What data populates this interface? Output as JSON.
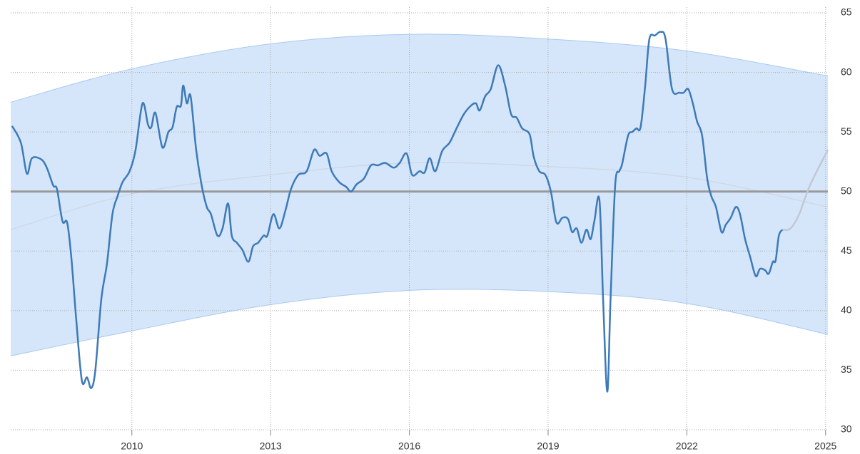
{
  "chart_data": {
    "type": "line",
    "xlim": [
      2007.38,
      2025.05
    ],
    "ylim": [
      30,
      65
    ],
    "xticks": [
      2010,
      2013,
      2016,
      2019,
      2022,
      2025
    ],
    "yticks": [
      30,
      35,
      40,
      45,
      50,
      55,
      60,
      65
    ],
    "grid": true,
    "reference_line": 50,
    "reference_color": "#999999",
    "band": {
      "color": "#d6e6fa",
      "edge_color": "#aac8f0",
      "trend_color": "#cfd8e6",
      "x": [
        2007.38,
        2010,
        2013,
        2016,
        2019,
        2022,
        2025.05
      ],
      "upper": [
        57.5,
        60.3,
        62.4,
        63.2,
        62.8,
        61.8,
        59.7
      ],
      "lower": [
        36.2,
        38.3,
        40.5,
        41.7,
        41.6,
        40.6,
        38.0
      ],
      "trend": [
        46.8,
        49.8,
        51.4,
        52.4,
        52.1,
        51.2,
        48.7
      ]
    },
    "series": [
      {
        "color": "#3d7ab8",
        "x": [
          2007.41,
          2007.6,
          2007.73,
          2007.84,
          2008.04,
          2008.16,
          2008.3,
          2008.38,
          2008.5,
          2008.6,
          2008.69,
          2008.8,
          2008.92,
          2009.03,
          2009.12,
          2009.21,
          2009.34,
          2009.46,
          2009.58,
          2009.69,
          2009.8,
          2009.95,
          2010.08,
          2010.23,
          2010.35,
          2010.42,
          2010.51,
          2010.66,
          2010.79,
          2010.88,
          2010.97,
          2011.06,
          2011.11,
          2011.19,
          2011.27,
          2011.39,
          2011.51,
          2011.62,
          2011.71,
          2011.85,
          2011.96,
          2012.08,
          2012.16,
          2012.27,
          2012.39,
          2012.52,
          2012.62,
          2012.73,
          2012.85,
          2012.93,
          2013.06,
          2013.19,
          2013.32,
          2013.44,
          2013.6,
          2013.78,
          2013.94,
          2014.06,
          2014.21,
          2014.32,
          2014.48,
          2014.63,
          2014.74,
          2014.86,
          2015.02,
          2015.17,
          2015.32,
          2015.48,
          2015.66,
          2015.79,
          2015.94,
          2016.06,
          2016.22,
          2016.33,
          2016.44,
          2016.56,
          2016.71,
          2016.87,
          2017.02,
          2017.18,
          2017.33,
          2017.44,
          2017.52,
          2017.64,
          2017.76,
          2017.92,
          2018.07,
          2018.2,
          2018.32,
          2018.44,
          2018.6,
          2018.69,
          2018.81,
          2018.94,
          2019.06,
          2019.18,
          2019.31,
          2019.43,
          2019.52,
          2019.62,
          2019.72,
          2019.83,
          2019.92,
          2020.0,
          2020.11,
          2020.19,
          2020.28,
          2020.35,
          2020.45,
          2020.54,
          2020.6,
          2020.73,
          2020.82,
          2020.91,
          2021.0,
          2021.1,
          2021.19,
          2021.31,
          2021.44,
          2021.54,
          2021.68,
          2021.84,
          2021.93,
          2022.03,
          2022.13,
          2022.22,
          2022.33,
          2022.44,
          2022.53,
          2022.63,
          2022.75,
          2022.84,
          2022.95,
          2023.06,
          2023.15,
          2023.26,
          2023.37,
          2023.49,
          2023.58,
          2023.69,
          2023.77,
          2023.86,
          2023.92,
          2023.99,
          2024.07
        ],
        "values": [
          55.5,
          54.1,
          51.5,
          52.8,
          52.7,
          52,
          50.5,
          50.2,
          47.5,
          47.4,
          44.5,
          39.1,
          34.1,
          34.4,
          33.5,
          35,
          41,
          43.9,
          48.1,
          49.6,
          50.8,
          51.7,
          53.5,
          57.4,
          55.6,
          55.4,
          56.6,
          53.7,
          55,
          55.4,
          57.1,
          57.2,
          58.9,
          57.4,
          58,
          53.5,
          50.5,
          48.7,
          48.1,
          46.3,
          46.9,
          49,
          46.3,
          45.7,
          45.1,
          44.1,
          45.4,
          45.7,
          46.3,
          46.3,
          48.1,
          46.9,
          48.4,
          50.2,
          51.4,
          51.7,
          53.5,
          53,
          53.2,
          51.7,
          50.8,
          50.4,
          50,
          50.6,
          51.1,
          52.2,
          52.2,
          52.4,
          52,
          52.4,
          53.2,
          51.4,
          51.7,
          51.6,
          52.8,
          51.7,
          53.4,
          54.1,
          55.3,
          56.5,
          57.2,
          57.4,
          56.8,
          58,
          58.6,
          60.6,
          58.9,
          56.5,
          56.2,
          55.3,
          54.8,
          52.9,
          51.7,
          51.4,
          50,
          47.4,
          47.8,
          47.7,
          46.6,
          46.9,
          45.7,
          46.8,
          46,
          47.5,
          49.3,
          40.9,
          33.2,
          40.9,
          50.5,
          51.7,
          52.3,
          54.7,
          55,
          55.3,
          55.4,
          58.9,
          62.8,
          63.1,
          63.4,
          62.8,
          58.6,
          58.3,
          58.3,
          58.6,
          57.4,
          55.9,
          54.7,
          51.1,
          49.6,
          48.7,
          46.6,
          47.2,
          47.8,
          48.7,
          48.1,
          46,
          44.5,
          42.9,
          43.5,
          43.4,
          43.1,
          44.1,
          44.2,
          46.3,
          46.8
        ]
      },
      {
        "color": "#c2c8d2",
        "x": [
          2024.07,
          2024.24,
          2024.43,
          2024.66,
          2025.05
        ],
        "values": [
          46.8,
          46.9,
          48.1,
          50.5,
          53.5
        ]
      }
    ]
  }
}
